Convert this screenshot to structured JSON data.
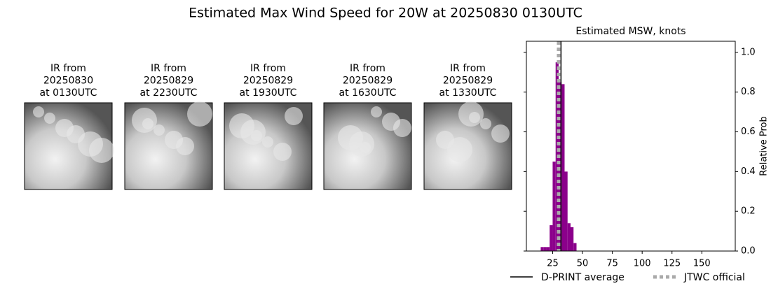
{
  "title": "Estimated Max Wind Speed for 20W at 20250830 0130UTC",
  "panels": [
    {
      "lines": [
        "IR from",
        "20250830",
        "at 0130UTC"
      ]
    },
    {
      "lines": [
        "IR from",
        "20250829",
        "at 2230UTC"
      ]
    },
    {
      "lines": [
        "IR from",
        "20250829",
        "at 1930UTC"
      ]
    },
    {
      "lines": [
        "IR from",
        "20250829",
        "at 1630UTC"
      ]
    },
    {
      "lines": [
        "IR from",
        "20250829",
        "at 1330UTC"
      ]
    }
  ],
  "chart_data": {
    "type": "histogram",
    "title": "Estimated MSW, knots",
    "bins": [
      15,
      17.5,
      20,
      22.5,
      25,
      27.5,
      30,
      32.5,
      35,
      37.5,
      40,
      42.5,
      45
    ],
    "values": [
      0.02,
      0.02,
      0.02,
      0.13,
      0.45,
      0.95,
      0.85,
      0.84,
      0.4,
      0.14,
      0.12,
      0.04
    ],
    "color": "#8b008b",
    "xlim": [
      3,
      178
    ],
    "ylim": [
      0,
      1.056
    ],
    "xticks": [
      25,
      50,
      75,
      100,
      125,
      150
    ],
    "yticks": [
      {
        "value": 0,
        "label": "0.0"
      },
      {
        "value": 0.2,
        "label": "0.2"
      },
      {
        "value": 0.4,
        "label": "0.4"
      },
      {
        "value": 0.6,
        "label": "0.6"
      },
      {
        "value": 0.8,
        "label": "0.8"
      },
      {
        "value": 1.0,
        "label": "1.0"
      }
    ],
    "ylabel": "Relative Prob",
    "lines": [
      {
        "name": "D-PRINT average",
        "x": 32,
        "color": "#000000",
        "style": "solid"
      },
      {
        "name": "JTWC official",
        "x": 30,
        "color": "#aaaaaa",
        "style": "dotted"
      }
    ]
  }
}
